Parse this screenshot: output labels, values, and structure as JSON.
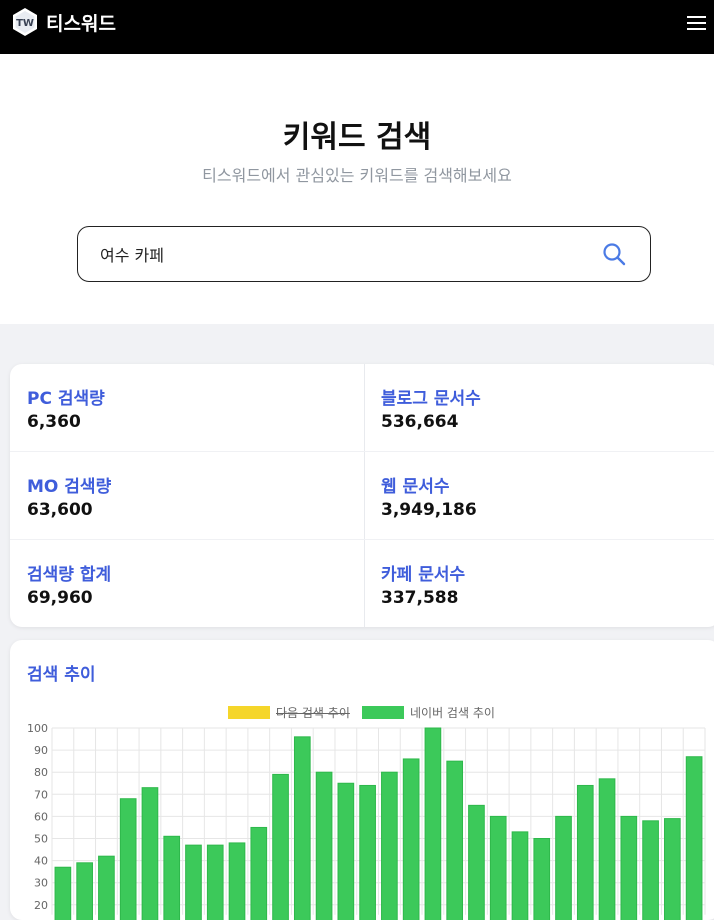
{
  "header": {
    "brand": "티스워드",
    "logo_text": "TW"
  },
  "hero": {
    "title": "키워드 검색",
    "subtitle": "티스워드에서 관심있는 키워드를 검색해보세요",
    "search_value": "여수 카페"
  },
  "stats": {
    "pc_label": "PC 검색량",
    "pc_value": "6,360",
    "mo_label": "MO 검색량",
    "mo_value": "63,600",
    "total_label": "검색량 합계",
    "total_value": "69,960",
    "blog_label": "블로그 문서수",
    "blog_value": "536,664",
    "web_label": "웹 문서수",
    "web_value": "3,949,186",
    "cafe_label": "카페 문서수",
    "cafe_value": "337,588"
  },
  "trend": {
    "title": "검색 추이"
  },
  "chart_data": {
    "type": "bar",
    "series": [
      {
        "name": "다음 검색 추이",
        "color": "#f5d62a",
        "hidden": true,
        "values": []
      },
      {
        "name": "네이버 검색 추이",
        "color": "#3cc95a",
        "values": [
          37,
          39,
          42,
          68,
          73,
          51,
          47,
          47,
          48,
          55,
          79,
          96,
          80,
          75,
          74,
          80,
          86,
          100,
          85,
          65,
          60,
          53,
          50,
          60,
          74,
          77,
          60,
          58,
          59,
          87
        ]
      }
    ],
    "y_ticks": [
      "100",
      "90",
      "80",
      "70",
      "60",
      "50",
      "40",
      "30",
      "20"
    ],
    "ylim": [
      20,
      100
    ],
    "grid": true,
    "legend_position": "top"
  }
}
